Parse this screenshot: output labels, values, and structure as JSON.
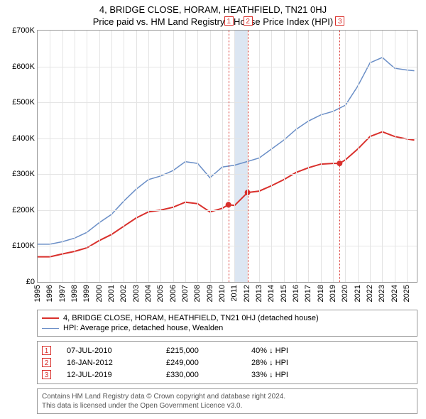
{
  "title": "4, BRIDGE CLOSE, HORAM, HEATHFIELD, TN21 0HJ",
  "subtitle": "Price paid vs. HM Land Registry's House Price Index (HPI)",
  "chart": {
    "type": "line",
    "background_color": "#ffffff",
    "grid_color": "#e4e4e4",
    "border_color": "#999999",
    "x_range": [
      1995,
      2025.8
    ],
    "y_range": [
      0,
      700
    ],
    "y_unit_prefix": "£",
    "y_unit_suffix": "K",
    "y_ticks": [
      0,
      100,
      200,
      300,
      400,
      500,
      600,
      700
    ],
    "x_ticks": [
      1995,
      1996,
      1997,
      1998,
      1999,
      2000,
      2001,
      2002,
      2003,
      2004,
      2005,
      2006,
      2007,
      2008,
      2009,
      2010,
      2011,
      2012,
      2013,
      2014,
      2015,
      2016,
      2017,
      2018,
      2019,
      2020,
      2021,
      2022,
      2023,
      2024,
      2025
    ],
    "highlight_band": {
      "from": 2011,
      "to": 2012,
      "color": "#dce6f2"
    },
    "event_lines": [
      {
        "x": 2010.5,
        "label": "1"
      },
      {
        "x": 2012.05,
        "label": "2"
      },
      {
        "x": 2019.53,
        "label": "3"
      }
    ],
    "series": [
      {
        "name": "price_paid",
        "label": "4, BRIDGE CLOSE, HORAM, HEATHFIELD, TN21 0HJ (detached house)",
        "color": "#d9302c",
        "line_width": 2,
        "points": [
          [
            1995,
            70
          ],
          [
            1996,
            70
          ],
          [
            1997,
            78
          ],
          [
            1998,
            85
          ],
          [
            1999,
            95
          ],
          [
            2000,
            115
          ],
          [
            2001,
            132
          ],
          [
            2002,
            155
          ],
          [
            2003,
            178
          ],
          [
            2004,
            195
          ],
          [
            2005,
            200
          ],
          [
            2006,
            208
          ],
          [
            2007,
            222
          ],
          [
            2008,
            218
          ],
          [
            2009,
            195
          ],
          [
            2010,
            205
          ],
          [
            2010.5,
            215
          ],
          [
            2011,
            213
          ],
          [
            2012,
            247
          ],
          [
            2012.05,
            249
          ],
          [
            2013,
            253
          ],
          [
            2014,
            268
          ],
          [
            2015,
            285
          ],
          [
            2016,
            305
          ],
          [
            2017,
            318
          ],
          [
            2018,
            328
          ],
          [
            2019,
            330
          ],
          [
            2019.53,
            330
          ],
          [
            2020,
            340
          ],
          [
            2021,
            370
          ],
          [
            2022,
            405
          ],
          [
            2023,
            418
          ],
          [
            2024,
            405
          ],
          [
            2025,
            398
          ],
          [
            2025.6,
            395
          ]
        ],
        "markers": [
          {
            "x": 2010.5,
            "y": 215
          },
          {
            "x": 2012.05,
            "y": 249
          },
          {
            "x": 2019.53,
            "y": 330
          }
        ]
      },
      {
        "name": "hpi",
        "label": "HPI: Average price, detached house, Wealden",
        "color": "#6b8fc7",
        "line_width": 1.5,
        "points": [
          [
            1995,
            105
          ],
          [
            1996,
            105
          ],
          [
            1997,
            112
          ],
          [
            1998,
            122
          ],
          [
            1999,
            138
          ],
          [
            2000,
            165
          ],
          [
            2001,
            188
          ],
          [
            2002,
            225
          ],
          [
            2003,
            258
          ],
          [
            2004,
            285
          ],
          [
            2005,
            295
          ],
          [
            2006,
            310
          ],
          [
            2007,
            335
          ],
          [
            2008,
            330
          ],
          [
            2009,
            290
          ],
          [
            2010,
            320
          ],
          [
            2011,
            325
          ],
          [
            2012,
            335
          ],
          [
            2013,
            345
          ],
          [
            2014,
            370
          ],
          [
            2015,
            395
          ],
          [
            2016,
            425
          ],
          [
            2017,
            448
          ],
          [
            2018,
            465
          ],
          [
            2019,
            475
          ],
          [
            2020,
            492
          ],
          [
            2021,
            545
          ],
          [
            2022,
            610
          ],
          [
            2023,
            625
          ],
          [
            2024,
            595
          ],
          [
            2025,
            590
          ],
          [
            2025.6,
            588
          ]
        ]
      }
    ]
  },
  "legend": {
    "items": [
      {
        "color": "#d9302c",
        "width": 2,
        "label": "4, BRIDGE CLOSE, HORAM, HEATHFIELD, TN21 0HJ (detached house)"
      },
      {
        "color": "#6b8fc7",
        "width": 1.5,
        "label": "HPI: Average price, detached house, Wealden"
      }
    ]
  },
  "events": [
    {
      "num": "1",
      "date": "07-JUL-2010",
      "price": "£215,000",
      "pct": "40% ↓ HPI"
    },
    {
      "num": "2",
      "date": "16-JAN-2012",
      "price": "£249,000",
      "pct": "28% ↓ HPI"
    },
    {
      "num": "3",
      "date": "12-JUL-2019",
      "price": "£330,000",
      "pct": "33% ↓ HPI"
    }
  ],
  "footer": {
    "line1": "Contains HM Land Registry data © Crown copyright and database right 2024.",
    "line2": "This data is licensed under the Open Government Licence v3.0."
  }
}
